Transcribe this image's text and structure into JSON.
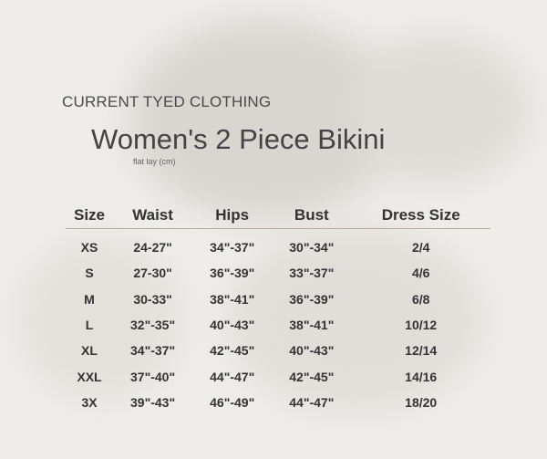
{
  "brand": "CURRENT TYED CLOTHING",
  "title": "Women's 2 Piece Bikini",
  "subtitle": "flat lay (cm)",
  "table": {
    "headers": [
      "Size",
      "Waist",
      "Hips",
      "Bust",
      "Dress Size"
    ],
    "rows": [
      [
        "XS",
        "24-27\"",
        "34\"-37\"",
        "30\"-34\"",
        "2/4"
      ],
      [
        "S",
        "27-30\"",
        "36\"-39\"",
        "33\"-37\"",
        "4/6"
      ],
      [
        "M",
        "30-33\"",
        "38\"-41\"",
        "36\"-39\"",
        "6/8"
      ],
      [
        "L",
        "32\"-35\"",
        "40\"-43\"",
        "38\"-41\"",
        "10/12"
      ],
      [
        "XL",
        "34\"-37\"",
        "42\"-45\"",
        "40\"-43\"",
        "12/14"
      ],
      [
        "XXL",
        "37\"-40\"",
        "44\"-47\"",
        "42\"-45\"",
        "14/16"
      ],
      [
        "3X",
        "39\"-43\"",
        "46\"-49\"",
        "44\"-47\"",
        "18/20"
      ]
    ]
  },
  "colors": {
    "background": "#efedea",
    "divider": "#b9a9a4",
    "text": "#333333"
  }
}
